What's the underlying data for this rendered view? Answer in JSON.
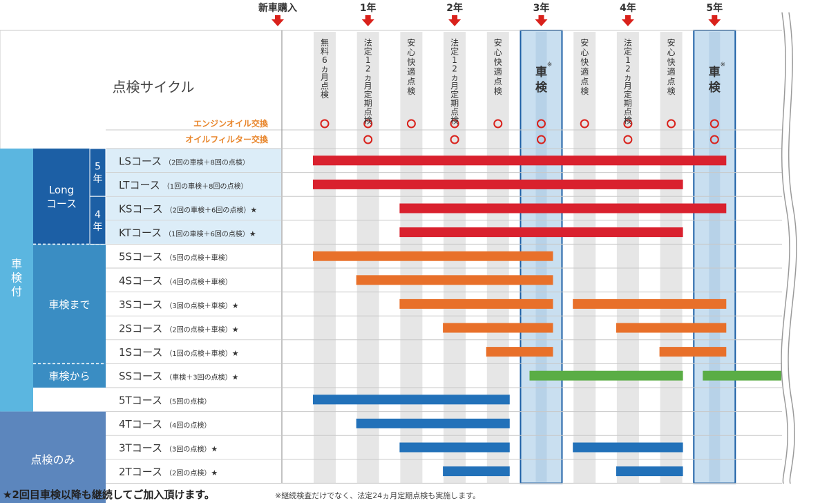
{
  "chart_data": {
    "type": "gantt",
    "title": "点検サイクル",
    "timeline": {
      "milestones": [
        {
          "label": "新車購入",
          "period": 0
        },
        {
          "label": "1年",
          "period": 2
        },
        {
          "label": "2年",
          "period": 4
        },
        {
          "label": "3年",
          "period": 6
        },
        {
          "label": "4年",
          "period": 8
        },
        {
          "label": "5年",
          "period": 10
        }
      ],
      "columns": [
        {
          "label": "無料6ヵ月点検",
          "oil": true,
          "filter": false,
          "shaken": false
        },
        {
          "label": "法定12ヵ月定期点検",
          "oil": true,
          "filter": true,
          "shaken": false
        },
        {
          "label": "安心快適点検",
          "oil": true,
          "filter": false,
          "shaken": false
        },
        {
          "label": "法定12ヵ月定期点検",
          "oil": true,
          "filter": true,
          "shaken": false
        },
        {
          "label": "安心快適点検",
          "oil": true,
          "filter": false,
          "shaken": false
        },
        {
          "label": "車検",
          "mark": "※",
          "oil": true,
          "filter": true,
          "shaken": true
        },
        {
          "label": "安心快適点検",
          "oil": true,
          "filter": false,
          "shaken": false
        },
        {
          "label": "法定12ヵ月定期点検",
          "oil": true,
          "filter": true,
          "shaken": false
        },
        {
          "label": "安心快適点検",
          "oil": true,
          "filter": false,
          "shaken": false
        },
        {
          "label": "車検",
          "mark": "※",
          "oil": true,
          "filter": true,
          "shaken": true
        }
      ],
      "service_rows": [
        {
          "label": "エンジンオイル交換",
          "key": "oil"
        },
        {
          "label": "オイルフィルター交換",
          "key": "filter"
        }
      ],
      "circle_symbol": "○"
    },
    "groups": [
      {
        "label": "車検付",
        "rows": [
          0,
          10
        ]
      },
      {
        "label": "点検のみ",
        "rows": [
          11,
          14
        ]
      }
    ],
    "subgroups": [
      {
        "label": "Longコース",
        "lines": [
          "Long",
          "コース"
        ],
        "rows": [
          0,
          3
        ]
      },
      {
        "label": "車検まで",
        "lines": [
          "車検まで"
        ],
        "rows": [
          4,
          8
        ]
      },
      {
        "label": "車検から",
        "lines": [
          "車検から"
        ],
        "rows": [
          9,
          9
        ]
      }
    ],
    "year_tags": [
      {
        "label": "5年",
        "rows": [
          0,
          1
        ]
      },
      {
        "label": "4年",
        "rows": [
          2,
          3
        ]
      }
    ],
    "courses": [
      {
        "name": "LSコース",
        "detail": "（2回の車検＋8回の点検）",
        "star": "",
        "color": "red",
        "bars": [
          [
            1,
            10
          ]
        ]
      },
      {
        "name": "LTコース",
        "detail": "（1回の車検＋8回の点検）",
        "star": "",
        "color": "red",
        "bars": [
          [
            1,
            9
          ]
        ]
      },
      {
        "name": "KSコース",
        "detail": "（2回の車検＋6回の点検）",
        "star": "★",
        "color": "red",
        "bars": [
          [
            3,
            10
          ]
        ]
      },
      {
        "name": "KTコース",
        "detail": "（1回の車検＋6回の点検）",
        "star": "★",
        "color": "red",
        "bars": [
          [
            3,
            9
          ]
        ]
      },
      {
        "name": "5Sコース",
        "detail": "（5回の点検＋車検）",
        "star": "",
        "color": "orange",
        "bars": [
          [
            1,
            6
          ]
        ]
      },
      {
        "name": "4Sコース",
        "detail": "（4回の点検＋車検）",
        "star": "",
        "color": "orange",
        "bars": [
          [
            2,
            6
          ]
        ]
      },
      {
        "name": "3Sコース",
        "detail": "（3回の点検＋車検）",
        "star": "★",
        "color": "orange",
        "bars": [
          [
            3,
            6
          ],
          [
            7,
            10
          ]
        ]
      },
      {
        "name": "2Sコース",
        "detail": "（2回の点検＋車検）",
        "star": "★",
        "color": "orange",
        "bars": [
          [
            4,
            6
          ],
          [
            8,
            10
          ]
        ]
      },
      {
        "name": "1Sコース",
        "detail": "（1回の点検＋車検）",
        "star": "★",
        "color": "orange",
        "bars": [
          [
            5,
            6
          ],
          [
            9,
            10
          ]
        ]
      },
      {
        "name": "SSコース",
        "detail": "（車検＋3回の点検）",
        "star": "★",
        "color": "green",
        "bars": [
          [
            6,
            9
          ],
          [
            10,
            11
          ]
        ]
      },
      {
        "name": "5Tコース",
        "detail": "（5回の点検）",
        "star": "",
        "color": "blue",
        "bars": [
          [
            1,
            5
          ]
        ]
      },
      {
        "name": "4Tコース",
        "detail": "（4回の点検）",
        "star": "",
        "color": "blue",
        "bars": [
          [
            2,
            5
          ]
        ]
      },
      {
        "name": "3Tコース",
        "detail": "（3回の点検）",
        "star": "★",
        "color": "blue",
        "bars": [
          [
            3,
            5
          ],
          [
            7,
            9
          ]
        ]
      },
      {
        "name": "2Tコース",
        "detail": "（2回の点検）",
        "star": "★",
        "color": "blue",
        "bars": [
          [
            4,
            5
          ],
          [
            8,
            9
          ]
        ]
      }
    ]
  },
  "footnote": {
    "main": "★2回目車検以降も継続してご加入頂けます。",
    "sub": "※継続検査だけでなく、法定24ヵ月定期点検も実施します。"
  },
  "colors": {
    "red": "#d9212e",
    "orange": "#e8702a",
    "green": "#5aad45",
    "blue": "#2271b9",
    "header_arrow": "#d9211b",
    "light_blue_cell": "#dcedf8",
    "group_cyan": "#5bb6e0",
    "group_navy": "#1c5fa5",
    "group_mid": "#3a8dc3",
    "group_slate": "#5c86bd",
    "shaken_col": "#c9dff0",
    "stripe": "#e6e6e6",
    "orange_text": "#e8862c",
    "grid": "#c8c8c8"
  }
}
